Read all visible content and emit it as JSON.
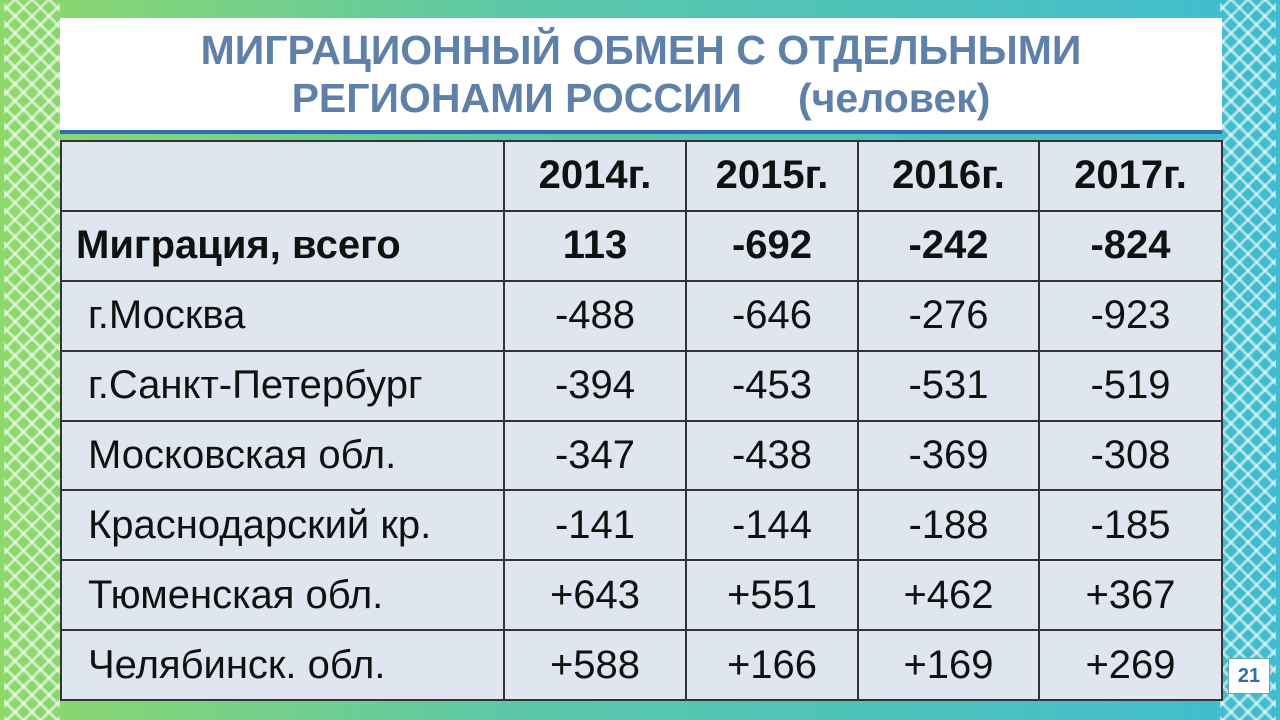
{
  "header": {
    "title": "МИГРАЦИОННЫЙ ОБМЕН С ОТДЕЛЬНЫМИ РЕГИОНАМИ РОССИИ",
    "unit": "(человек)"
  },
  "table": {
    "columns": [
      "",
      "2014г.",
      "2015г.",
      "2016г.",
      "2017г."
    ],
    "rows": [
      [
        "Миграция, всего",
        "113",
        "-692",
        "-242",
        "-824"
      ],
      [
        "г.Москва",
        "-488",
        "-646",
        "-276",
        "-923"
      ],
      [
        "г.Санкт-Петербург",
        "-394",
        "-453",
        "-531",
        "-519"
      ],
      [
        "Московская обл.",
        "-347",
        "-438",
        "-369",
        "-308"
      ],
      [
        "Краснодарский кр.",
        "-141",
        "-144",
        "-188",
        "-185"
      ],
      [
        "Тюменская обл.",
        "+643",
        "+551",
        "+462",
        "+367"
      ],
      [
        "Челябинск. обл.",
        "+588",
        "+166",
        "+169",
        "+269"
      ]
    ]
  },
  "footer": {
    "page_number": "21"
  }
}
